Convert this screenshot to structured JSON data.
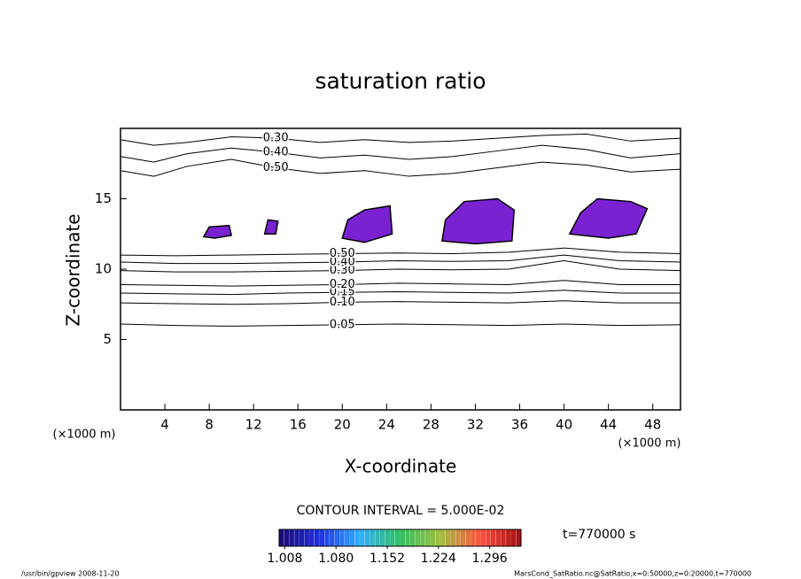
{
  "chart_data": {
    "type": "contour",
    "title": "saturation ratio",
    "xlabel": "X-coordinate",
    "ylabel": "Z-coordinate",
    "xunits": "(×1000 m)",
    "yunits": "(×1000 m)",
    "xlim": [
      0,
      50.5
    ],
    "ylim": [
      0,
      20
    ],
    "xticks": [
      4,
      8,
      12,
      16,
      20,
      24,
      28,
      32,
      36,
      40,
      44,
      48
    ],
    "yticks": [
      5,
      10,
      15
    ],
    "line_color": "#000000",
    "contour_interval": "CONTOUR INTERVAL = 5.000E-02",
    "contours": [
      {
        "level": {
          "value": 0.05,
          "label": "0.05"
        },
        "x": [
          0,
          5,
          10,
          15,
          20,
          25,
          30,
          35,
          40,
          45,
          50.5
        ],
        "z": [
          6.1,
          6.0,
          5.95,
          6.0,
          6.05,
          6.1,
          6.05,
          6.0,
          6.1,
          6.0,
          6.05
        ]
      },
      {
        "level": {
          "value": 0.1,
          "label": "0.10"
        },
        "x": [
          0,
          5,
          10,
          15,
          20,
          25,
          30,
          35,
          40,
          45,
          50.5
        ],
        "z": [
          7.6,
          7.55,
          7.5,
          7.55,
          7.65,
          7.7,
          7.65,
          7.6,
          7.75,
          7.6,
          7.6
        ]
      },
      {
        "level": {
          "value": 0.15,
          "label": "0.15"
        },
        "x": [
          0,
          5,
          10,
          15,
          20,
          25,
          30,
          35,
          40,
          45,
          50.5
        ],
        "z": [
          8.3,
          8.25,
          8.2,
          8.3,
          8.35,
          8.4,
          8.35,
          8.3,
          8.5,
          8.3,
          8.3
        ]
      },
      {
        "level": {
          "value": 0.2,
          "label": "0.20"
        },
        "x": [
          0,
          5,
          10,
          15,
          20,
          25,
          30,
          35,
          40,
          45,
          50.5
        ],
        "z": [
          8.9,
          8.85,
          8.8,
          8.85,
          8.9,
          9.0,
          8.95,
          8.9,
          9.2,
          8.9,
          8.9
        ]
      },
      {
        "level": {
          "value": 0.3,
          "label": "0.30"
        },
        "x": [
          0,
          5,
          10,
          15,
          20,
          25,
          30,
          35,
          40,
          45,
          50.5
        ],
        "z": [
          9.9,
          9.8,
          9.8,
          9.85,
          9.9,
          10.0,
          9.95,
          10.0,
          10.6,
          10.0,
          9.9
        ]
      },
      {
        "level": {
          "value": 0.4,
          "label": "0.40"
        },
        "x": [
          0,
          5,
          10,
          15,
          20,
          25,
          30,
          35,
          40,
          45,
          50.5
        ],
        "z": [
          10.5,
          10.4,
          10.4,
          10.45,
          10.5,
          10.6,
          10.55,
          10.6,
          11.0,
          10.6,
          10.5
        ]
      },
      {
        "level": {
          "value": 0.5,
          "label": "0.50"
        },
        "x": [
          0,
          5,
          10,
          15,
          20,
          25,
          30,
          35,
          40,
          45,
          50.5
        ],
        "z": [
          11.0,
          10.95,
          11.0,
          11.05,
          11.1,
          11.15,
          11.1,
          11.2,
          11.5,
          11.2,
          11.1
        ]
      },
      {
        "level": {
          "value": 0.5,
          "label": "0.50"
        },
        "x": [
          0,
          3,
          6,
          10,
          14,
          18,
          22,
          26,
          30,
          34,
          38,
          42,
          46,
          50.5
        ],
        "z": [
          17.0,
          16.6,
          17.3,
          17.8,
          17.2,
          16.8,
          17.0,
          16.6,
          16.8,
          17.2,
          17.6,
          17.4,
          16.9,
          17.1
        ]
      },
      {
        "level": {
          "value": 0.4,
          "label": "0.40"
        },
        "x": [
          0,
          3,
          6,
          10,
          14,
          18,
          22,
          26,
          30,
          34,
          38,
          42,
          46,
          50.5
        ],
        "z": [
          18.0,
          17.6,
          18.2,
          18.6,
          18.3,
          17.9,
          18.1,
          17.8,
          18.0,
          18.4,
          18.8,
          18.5,
          17.9,
          18.2
        ]
      },
      {
        "level": {
          "value": 0.3,
          "label": "0.30"
        },
        "x": [
          0,
          3,
          6,
          10,
          14,
          18,
          22,
          26,
          30,
          34,
          38,
          42,
          46,
          50.5
        ],
        "z": [
          19.2,
          18.8,
          19.0,
          19.4,
          19.3,
          19.0,
          19.2,
          19.0,
          19.1,
          19.3,
          19.5,
          19.6,
          19.1,
          19.3
        ]
      }
    ],
    "shaded_color": "#7a22d2",
    "shaded": [
      {
        "x": [
          20,
          20.5,
          22,
          24.3,
          24.5,
          22
        ],
        "z": [
          12.2,
          13.5,
          14.2,
          14.5,
          12.5,
          11.9
        ]
      },
      {
        "x": [
          29,
          29.3,
          31,
          34,
          35.5,
          35.3,
          32
        ],
        "z": [
          12.0,
          13.5,
          14.8,
          15.0,
          14.2,
          12.0,
          11.8
        ]
      },
      {
        "x": [
          40.5,
          41.5,
          43,
          46,
          47.5,
          46.5,
          44
        ],
        "z": [
          12.5,
          14.0,
          15.0,
          14.8,
          14.3,
          12.5,
          12.2
        ]
      },
      {
        "x": [
          7.5,
          8.0,
          9.8,
          10.0,
          8.5
        ],
        "z": [
          12.3,
          13.0,
          13.1,
          12.4,
          12.2
        ]
      },
      {
        "x": [
          13.0,
          13.3,
          14.2,
          14.0
        ],
        "z": [
          12.5,
          13.5,
          13.4,
          12.5
        ]
      }
    ],
    "colorbar": {
      "clim": [
        1.0,
        1.34
      ],
      "ticks": [
        1.008,
        {
          "value": 1.08,
          "label": "1.080"
        },
        1.152,
        1.224,
        1.296
      ],
      "colormap": [
        "#1a0a6e",
        "#2030e0",
        "#30b0ff",
        "#30c060",
        "#a0c040",
        "#ff5040",
        "#a01010"
      ]
    },
    "time_label": "t=770000 s",
    "footer_left": "/usr/bin/gpview   2008-11-20",
    "footer_right": "MarsCond_SatRatio.nc@SatRatio,x=0:50000,z=0:20000,t=770000"
  }
}
